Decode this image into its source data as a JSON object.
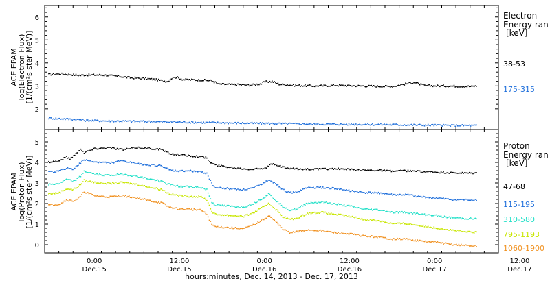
{
  "chart_data": [
    {
      "type": "scatter",
      "panel": "electron",
      "ylabel_lines": [
        "ACE EPAM",
        "log(Electron Flux)",
        "[1/(cm²s ster MeV)]"
      ],
      "ylim": [
        1.1,
        6.5
      ],
      "yticks": [
        "2",
        "3",
        "4",
        "5",
        "6"
      ],
      "xlim_hours": [
        -7,
        57
      ],
      "legend_head": [
        "Electron",
        "Energy ran",
        "[keV]"
      ],
      "grid": false,
      "series": [
        {
          "name": "38-53",
          "color": "#000000",
          "points": [
            [
              -6.5,
              3.52
            ],
            [
              -5,
              3.55
            ],
            [
              -3.5,
              3.52
            ],
            [
              -2,
              3.48
            ],
            [
              -1.5,
              3.5
            ],
            [
              1,
              3.5
            ],
            [
              3,
              3.45
            ],
            [
              5,
              3.38
            ],
            [
              7,
              3.35
            ],
            [
              8.5,
              3.3
            ],
            [
              9.5,
              3.25
            ],
            [
              10.3,
              3.22
            ],
            [
              10.8,
              3.35
            ],
            [
              11.5,
              3.4
            ],
            [
              12.5,
              3.3
            ],
            [
              15,
              3.28
            ],
            [
              16.5,
              3.25
            ],
            [
              17.5,
              3.1
            ],
            [
              20,
              3.08
            ],
            [
              22,
              3.06
            ],
            [
              23.5,
              3.12
            ],
            [
              24,
              3.2
            ],
            [
              25,
              3.22
            ],
            [
              26,
              3.1
            ],
            [
              28,
              3.05
            ],
            [
              31,
              3.02
            ],
            [
              34,
              3.05
            ],
            [
              38,
              3.02
            ],
            [
              42,
              3.0
            ],
            [
              44,
              3.12
            ],
            [
              45,
              3.18
            ],
            [
              46.5,
              3.04
            ],
            [
              50,
              3.02
            ],
            [
              53,
              3.0
            ],
            [
              54,
              3.02
            ]
          ]
        },
        {
          "name": "175-315",
          "color": "#1f6fdb",
          "points": [
            [
              -6.5,
              1.62
            ],
            [
              -4,
              1.58
            ],
            [
              -2,
              1.55
            ],
            [
              -1.5,
              1.52
            ],
            [
              1,
              1.5
            ],
            [
              5,
              1.48
            ],
            [
              9,
              1.46
            ],
            [
              13,
              1.44
            ],
            [
              17,
              1.42
            ],
            [
              21,
              1.4
            ],
            [
              26,
              1.38
            ],
            [
              31,
              1.36
            ],
            [
              36,
              1.35
            ],
            [
              41,
              1.34
            ],
            [
              46,
              1.32
            ],
            [
              51,
              1.3
            ],
            [
              54,
              1.3
            ]
          ]
        }
      ]
    },
    {
      "type": "scatter",
      "panel": "proton",
      "ylabel_lines": [
        "ACE EPAM",
        "log(Proton Flux)",
        "[1/(cm²s ster MeV)]"
      ],
      "ylim": [
        -0.4,
        5.6
      ],
      "yticks": [
        "0",
        "1",
        "2",
        "3",
        "4",
        "5"
      ],
      "xlim_hours": [
        -7,
        57
      ],
      "legend_head": [
        "Proton",
        "Energy ran",
        "[keV]"
      ],
      "grid": false,
      "series": [
        {
          "name": "47-68",
          "color": "#000000",
          "points": [
            [
              -6.5,
              4.05
            ],
            [
              -5,
              4.1
            ],
            [
              -4,
              4.3
            ],
            [
              -3.5,
              4.2
            ],
            [
              -2.5,
              4.5
            ],
            [
              -2,
              4.7
            ],
            [
              -1.5,
              4.5
            ],
            [
              0,
              4.7
            ],
            [
              2,
              4.75
            ],
            [
              4,
              4.65
            ],
            [
              6,
              4.75
            ],
            [
              8,
              4.7
            ],
            [
              9.5,
              4.65
            ],
            [
              10.5,
              4.45
            ],
            [
              12,
              4.4
            ],
            [
              13.5,
              4.35
            ],
            [
              15,
              4.3
            ],
            [
              15.8,
              4.25
            ],
            [
              16.2,
              4.05
            ],
            [
              17,
              3.9
            ],
            [
              18,
              3.85
            ],
            [
              20,
              3.75
            ],
            [
              22,
              3.7
            ],
            [
              24,
              3.75
            ],
            [
              25,
              3.95
            ],
            [
              25.5,
              3.9
            ],
            [
              27,
              3.75
            ],
            [
              28.5,
              3.7
            ],
            [
              30,
              3.7
            ],
            [
              32,
              3.7
            ],
            [
              34,
              3.72
            ],
            [
              36,
              3.68
            ],
            [
              38,
              3.65
            ],
            [
              40,
              3.65
            ],
            [
              42,
              3.6
            ],
            [
              44,
              3.62
            ],
            [
              46,
              3.58
            ],
            [
              48,
              3.55
            ],
            [
              50,
              3.52
            ],
            [
              52,
              3.5
            ],
            [
              54,
              3.5
            ]
          ]
        },
        {
          "name": "115-195",
          "color": "#1f6fdb",
          "points": [
            [
              -6.5,
              3.55
            ],
            [
              -5,
              3.6
            ],
            [
              -4,
              3.75
            ],
            [
              -3,
              3.7
            ],
            [
              -2,
              4.0
            ],
            [
              -1.5,
              4.15
            ],
            [
              0,
              4.05
            ],
            [
              2,
              4.0
            ],
            [
              4,
              4.1
            ],
            [
              6,
              3.95
            ],
            [
              8,
              3.9
            ],
            [
              9.5,
              3.85
            ],
            [
              10.5,
              3.65
            ],
            [
              12,
              3.6
            ],
            [
              13.5,
              3.62
            ],
            [
              15,
              3.55
            ],
            [
              15.8,
              3.5
            ],
            [
              16.5,
              3.0
            ],
            [
              17,
              2.8
            ],
            [
              19,
              2.75
            ],
            [
              21,
              2.7
            ],
            [
              22.5,
              2.8
            ],
            [
              24,
              3.05
            ],
            [
              24.5,
              3.2
            ],
            [
              25.5,
              3.0
            ],
            [
              26.5,
              2.7
            ],
            [
              27.5,
              2.55
            ],
            [
              28.5,
              2.6
            ],
            [
              30,
              2.8
            ],
            [
              32,
              2.8
            ],
            [
              34,
              2.75
            ],
            [
              36,
              2.65
            ],
            [
              38,
              2.55
            ],
            [
              40,
              2.55
            ],
            [
              42,
              2.45
            ],
            [
              44,
              2.45
            ],
            [
              46,
              2.35
            ],
            [
              48,
              2.3
            ],
            [
              50,
              2.22
            ],
            [
              52,
              2.2
            ],
            [
              54,
              2.2
            ]
          ]
        },
        {
          "name": "310-580",
          "color": "#22e0c8",
          "points": [
            [
              -6.5,
              2.95
            ],
            [
              -5,
              3.0
            ],
            [
              -4,
              3.2
            ],
            [
              -3,
              3.1
            ],
            [
              -2,
              3.35
            ],
            [
              -1.5,
              3.6
            ],
            [
              0,
              3.45
            ],
            [
              2,
              3.4
            ],
            [
              4,
              3.45
            ],
            [
              6,
              3.35
            ],
            [
              8,
              3.2
            ],
            [
              9.5,
              3.1
            ],
            [
              10.5,
              2.95
            ],
            [
              12,
              2.85
            ],
            [
              13.5,
              2.85
            ],
            [
              15,
              2.8
            ],
            [
              15.8,
              2.7
            ],
            [
              16.5,
              2.1
            ],
            [
              17,
              1.95
            ],
            [
              19,
              1.9
            ],
            [
              21,
              1.85
            ],
            [
              22.5,
              2.05
            ],
            [
              24,
              2.35
            ],
            [
              24.5,
              2.5
            ],
            [
              25.5,
              2.2
            ],
            [
              26.5,
              1.9
            ],
            [
              27.5,
              1.7
            ],
            [
              28.5,
              1.75
            ],
            [
              30,
              2.05
            ],
            [
              32,
              2.1
            ],
            [
              34,
              2.0
            ],
            [
              36,
              1.9
            ],
            [
              38,
              1.75
            ],
            [
              40,
              1.72
            ],
            [
              42,
              1.6
            ],
            [
              44,
              1.6
            ],
            [
              46,
              1.5
            ],
            [
              48,
              1.45
            ],
            [
              50,
              1.35
            ],
            [
              52,
              1.3
            ],
            [
              54,
              1.28
            ]
          ]
        },
        {
          "name": "795-1193",
          "color": "#c8e600",
          "points": [
            [
              -6.5,
              2.5
            ],
            [
              -5,
              2.55
            ],
            [
              -4,
              2.75
            ],
            [
              -3,
              2.7
            ],
            [
              -2,
              2.95
            ],
            [
              -1.5,
              3.15
            ],
            [
              0,
              3.05
            ],
            [
              2,
              3.0
            ],
            [
              4,
              3.05
            ],
            [
              6,
              2.95
            ],
            [
              8,
              2.8
            ],
            [
              9.5,
              2.7
            ],
            [
              10.5,
              2.5
            ],
            [
              12,
              2.4
            ],
            [
              13.5,
              2.38
            ],
            [
              15,
              2.35
            ],
            [
              15.8,
              2.2
            ],
            [
              16.5,
              1.65
            ],
            [
              17,
              1.5
            ],
            [
              19,
              1.45
            ],
            [
              21,
              1.4
            ],
            [
              22.5,
              1.6
            ],
            [
              24,
              1.9
            ],
            [
              24.5,
              2.05
            ],
            [
              25.5,
              1.75
            ],
            [
              26.5,
              1.4
            ],
            [
              27.5,
              1.25
            ],
            [
              28.5,
              1.3
            ],
            [
              30,
              1.55
            ],
            [
              32,
              1.6
            ],
            [
              34,
              1.5
            ],
            [
              36,
              1.4
            ],
            [
              38,
              1.25
            ],
            [
              40,
              1.2
            ],
            [
              42,
              1.05
            ],
            [
              44,
              1.05
            ],
            [
              46,
              0.95
            ],
            [
              48,
              0.85
            ],
            [
              50,
              0.75
            ],
            [
              52,
              0.65
            ],
            [
              54,
              0.62
            ]
          ]
        },
        {
          "name": "1060-1900",
          "color": "#f0901e",
          "points": [
            [
              -6.5,
              1.95
            ],
            [
              -5,
              2.0
            ],
            [
              -4,
              2.2
            ],
            [
              -3,
              2.15
            ],
            [
              -2,
              2.35
            ],
            [
              -1.5,
              2.6
            ],
            [
              0,
              2.4
            ],
            [
              2,
              2.35
            ],
            [
              4,
              2.4
            ],
            [
              6,
              2.3
            ],
            [
              8,
              2.15
            ],
            [
              9.5,
              2.05
            ],
            [
              10.5,
              1.85
            ],
            [
              12,
              1.75
            ],
            [
              13.5,
              1.75
            ],
            [
              15,
              1.7
            ],
            [
              15.8,
              1.5
            ],
            [
              16.5,
              1.0
            ],
            [
              17,
              0.9
            ],
            [
              19,
              0.85
            ],
            [
              21,
              0.8
            ],
            [
              22.5,
              1.0
            ],
            [
              24,
              1.3
            ],
            [
              24.5,
              1.45
            ],
            [
              25.5,
              1.15
            ],
            [
              26.5,
              0.8
            ],
            [
              27.5,
              0.6
            ],
            [
              28.5,
              0.65
            ],
            [
              30,
              0.75
            ],
            [
              32,
              0.7
            ],
            [
              34,
              0.6
            ],
            [
              36,
              0.55
            ],
            [
              38,
              0.45
            ],
            [
              40,
              0.4
            ],
            [
              42,
              0.3
            ],
            [
              44,
              0.3
            ],
            [
              46,
              0.2
            ],
            [
              48,
              0.15
            ],
            [
              50,
              0.05
            ],
            [
              52,
              0.0
            ],
            [
              54,
              -0.05
            ]
          ]
        }
      ]
    }
  ],
  "x_axis": {
    "ticks": [
      {
        "h": 0,
        "time": "0:00",
        "date": "Dec.15"
      },
      {
        "h": 12,
        "time": "12:00",
        "date": "Dec.15"
      },
      {
        "h": 24,
        "time": "0:00",
        "date": "Dec.16"
      },
      {
        "h": 36,
        "time": "12:00",
        "date": "Dec.16"
      },
      {
        "h": 48,
        "time": "0:00",
        "date": "Dec.17"
      },
      {
        "h": 60,
        "time": "12:00",
        "date": "Dec.17"
      }
    ],
    "xlabel": "hours:minutes, Dec. 14, 2013 - Dec. 17, 2013"
  }
}
